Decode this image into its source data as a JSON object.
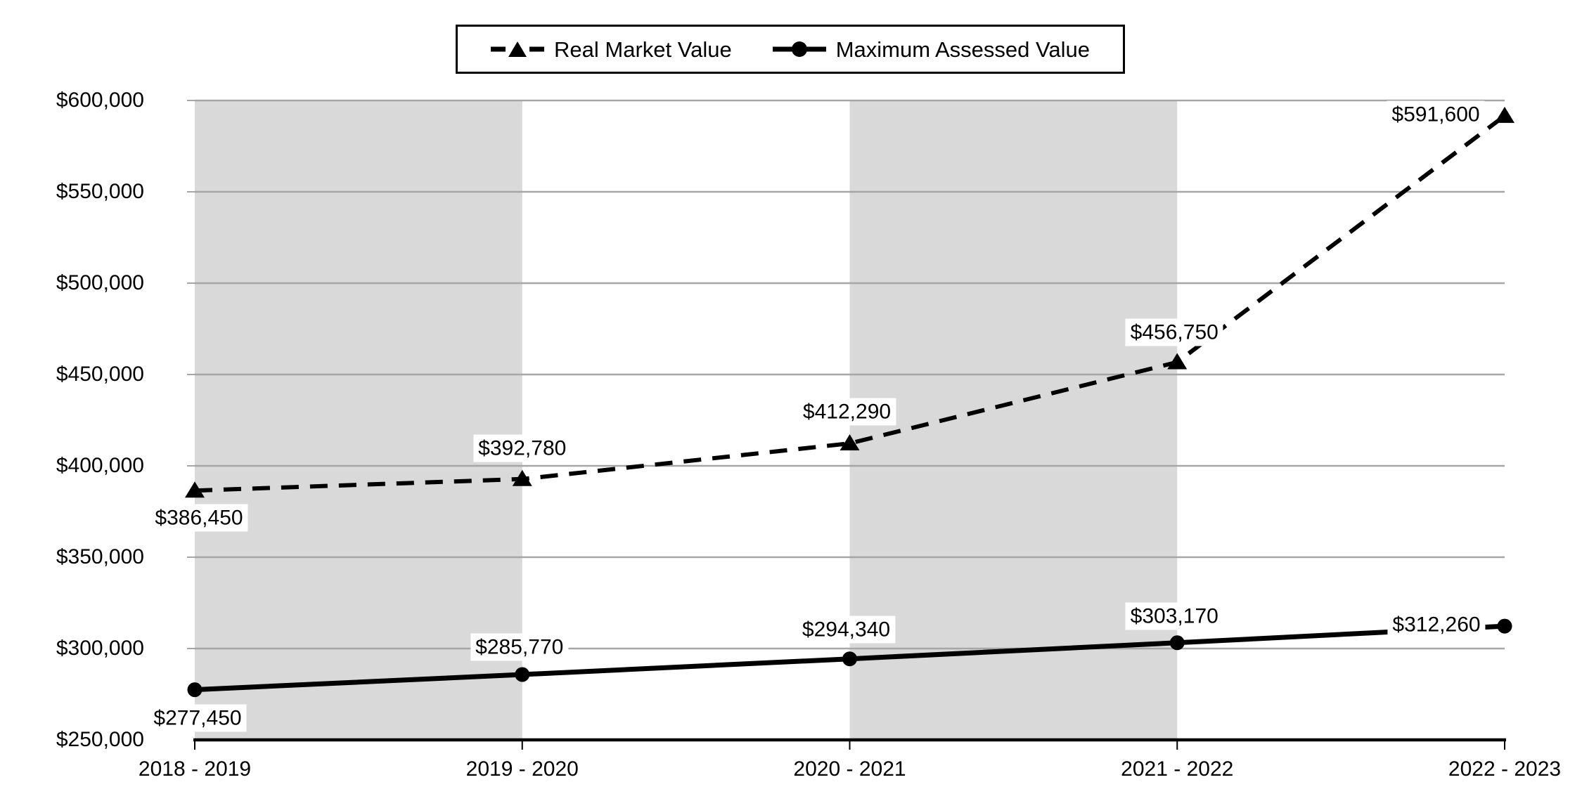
{
  "legend": {
    "items": [
      {
        "label": "Real Market Value",
        "marker": "dashed-line-triangle"
      },
      {
        "label": "Maximum Assessed Value",
        "marker": "solid-line-circle"
      }
    ]
  },
  "chart_data": {
    "type": "line",
    "categories": [
      "2018 - 2019",
      "2019 - 2020",
      "2020 - 2021",
      "2021 - 2022",
      "2022 - 2023"
    ],
    "series": [
      {
        "name": "Real Market Value",
        "line_style": "dashed",
        "marker": "triangle",
        "values": [
          386450,
          392780,
          412290,
          456750,
          591600
        ],
        "labels": [
          "$386,450",
          "$392,780",
          "$412,290",
          "$456,750",
          "$591,600"
        ]
      },
      {
        "name": "Maximum Assessed Value",
        "line_style": "solid",
        "marker": "circle",
        "values": [
          277450,
          285770,
          294340,
          303170,
          312260
        ],
        "labels": [
          "$277,450",
          "$285,770",
          "$294,340",
          "$303,170",
          "$312,260"
        ]
      }
    ],
    "y_axis": {
      "min": 250000,
      "max": 600000,
      "step": 50000,
      "tick_labels": [
        "$600,000",
        "$550,000",
        "$500,000",
        "$450,000",
        "$400,000",
        "$350,000",
        "$300,000",
        "$250,000"
      ]
    },
    "x_axis": {
      "tick_labels": [
        "2018 - 2019",
        "2019 - 2020",
        "2020 - 2021",
        "2021 - 2022",
        "2022 - 2023"
      ]
    },
    "grid": true,
    "legend_position": "top-center",
    "shaded_bands": {
      "category_spans": [
        [
          0,
          1
        ],
        [
          2,
          3
        ]
      ],
      "color": "#d9d9d9"
    },
    "colors": {
      "series_line": "#000000",
      "gridline": "#a6a6a6",
      "axis_line": "#000000",
      "band_fill": "#d9d9d9",
      "label_background": "#ffffff",
      "text": "#000000"
    }
  }
}
